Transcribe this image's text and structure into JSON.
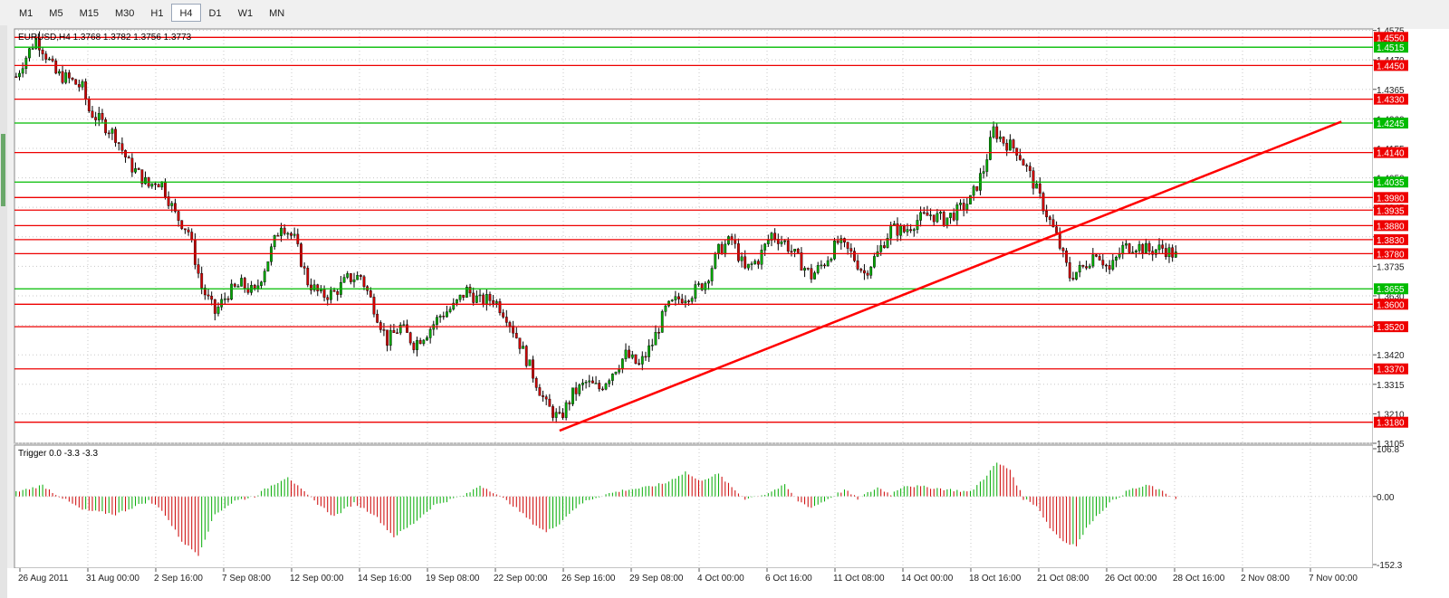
{
  "toolbar": {
    "timeframes": [
      {
        "label": "M1",
        "active": false
      },
      {
        "label": "M5",
        "active": false
      },
      {
        "label": "M15",
        "active": false
      },
      {
        "label": "M30",
        "active": false
      },
      {
        "label": "H1",
        "active": false
      },
      {
        "label": "H4",
        "active": true
      },
      {
        "label": "D1",
        "active": false
      },
      {
        "label": "W1",
        "active": false
      },
      {
        "label": "MN",
        "active": false
      }
    ]
  },
  "colors": {
    "bull": "#00aa00",
    "bear": "#cc0000",
    "support": "#00bb00",
    "resistance": "#ee0000",
    "trendline": "#ff0000",
    "grid": "#c8c8c8"
  },
  "chart_data": [
    {
      "type": "candlestick",
      "title": "EURUSD,H4  1.3768 1.3782 1.3756 1.3773",
      "symbol": "EURUSD",
      "timeframe": "H4",
      "ohlc_last": {
        "open": 1.3768,
        "high": 1.3782,
        "low": 1.3756,
        "close": 1.3773
      },
      "ylim": [
        1.3105,
        1.458
      ],
      "y_ticks": [
        "1.4575",
        "1.4470",
        "1.4365",
        "1.4260",
        "1.4155",
        "1.4050",
        "1.3945",
        "1.3840",
        "1.3735",
        "1.3630",
        "1.3525",
        "1.3420",
        "1.3315",
        "1.3210",
        "1.3105"
      ],
      "x_ticks": [
        "26 Aug 2011",
        "31 Aug 00:00",
        "2 Sep 16:00",
        "7 Sep 08:00",
        "12 Sep 00:00",
        "14 Sep 16:00",
        "19 Sep 08:00",
        "22 Sep 00:00",
        "26 Sep 16:00",
        "29 Sep 08:00",
        "4 Oct 00:00",
        "6 Oct 16:00",
        "11 Oct 08:00",
        "14 Oct 00:00",
        "18 Oct 16:00",
        "21 Oct 08:00",
        "26 Oct 00:00",
        "28 Oct 16:00",
        "2 Nov 08:00",
        "7 Nov 00:00"
      ],
      "price_anchors": [
        [
          0,
          1.441
        ],
        [
          2,
          1.446
        ],
        [
          6,
          1.4545
        ],
        [
          8,
          1.451
        ],
        [
          12,
          1.442
        ],
        [
          16,
          1.44
        ],
        [
          20,
          1.437
        ],
        [
          22,
          1.429
        ],
        [
          26,
          1.4245
        ],
        [
          30,
          1.42
        ],
        [
          34,
          1.41
        ],
        [
          38,
          1.405
        ],
        [
          40,
          1.402
        ],
        [
          42,
          1.404
        ],
        [
          44,
          1.403
        ],
        [
          48,
          1.392
        ],
        [
          52,
          1.386
        ],
        [
          56,
          1.366
        ],
        [
          60,
          1.357
        ],
        [
          64,
          1.364
        ],
        [
          68,
          1.367
        ],
        [
          72,
          1.364
        ],
        [
          76,
          1.376
        ],
        [
          80,
          1.389
        ],
        [
          84,
          1.383
        ],
        [
          88,
          1.368
        ],
        [
          92,
          1.363
        ],
        [
          96,
          1.364
        ],
        [
          100,
          1.369
        ],
        [
          104,
          1.37
        ],
        [
          108,
          1.359
        ],
        [
          112,
          1.347
        ],
        [
          116,
          1.352
        ],
        [
          120,
          1.346
        ],
        [
          124,
          1.35
        ],
        [
          128,
          1.356
        ],
        [
          132,
          1.359
        ],
        [
          136,
          1.365
        ],
        [
          140,
          1.361
        ],
        [
          144,
          1.362
        ],
        [
          148,
          1.356
        ],
        [
          152,
          1.346
        ],
        [
          156,
          1.335
        ],
        [
          160,
          1.324
        ],
        [
          164,
          1.319
        ],
        [
          168,
          1.328
        ],
        [
          172,
          1.332
        ],
        [
          176,
          1.33
        ],
        [
          180,
          1.336
        ],
        [
          184,
          1.342
        ],
        [
          188,
          1.338
        ],
        [
          192,
          1.346
        ],
        [
          196,
          1.358
        ],
        [
          200,
          1.362
        ],
        [
          204,
          1.364
        ],
        [
          208,
          1.368
        ],
        [
          212,
          1.379
        ],
        [
          216,
          1.383
        ],
        [
          220,
          1.372
        ],
        [
          224,
          1.376
        ],
        [
          228,
          1.385
        ],
        [
          232,
          1.382
        ],
        [
          236,
          1.376
        ],
        [
          240,
          1.37
        ],
        [
          244,
          1.375
        ],
        [
          248,
          1.382
        ],
        [
          252,
          1.378
        ],
        [
          256,
          1.371
        ],
        [
          260,
          1.378
        ],
        [
          264,
          1.387
        ],
        [
          268,
          1.386
        ],
        [
          272,
          1.39
        ],
        [
          276,
          1.392
        ],
        [
          280,
          1.39
        ],
        [
          284,
          1.393
        ],
        [
          288,
          1.397
        ],
        [
          292,
          1.408
        ],
        [
          295,
          1.422
        ],
        [
          298,
          1.418
        ],
        [
          302,
          1.415
        ],
        [
          306,
          1.406
        ],
        [
          310,
          1.395
        ],
        [
          314,
          1.384
        ],
        [
          318,
          1.37
        ],
        [
          322,
          1.373
        ],
        [
          326,
          1.379
        ],
        [
          330,
          1.372
        ],
        [
          334,
          1.38
        ],
        [
          338,
          1.381
        ],
        [
          342,
          1.379
        ],
        [
          346,
          1.38
        ],
        [
          350,
          1.3773
        ]
      ],
      "horizontal_levels": [
        {
          "label": "1.4550",
          "price": 1.455,
          "kind": "resistance"
        },
        {
          "label": "1.4515",
          "price": 1.4515,
          "kind": "support"
        },
        {
          "label": "1.4450",
          "price": 1.445,
          "kind": "resistance"
        },
        {
          "label": "1.4330",
          "price": 1.433,
          "kind": "resistance"
        },
        {
          "label": "1.4245",
          "price": 1.4245,
          "kind": "support"
        },
        {
          "label": "1.4140",
          "price": 1.414,
          "kind": "resistance"
        },
        {
          "label": "1.4035",
          "price": 1.4035,
          "kind": "support"
        },
        {
          "label": "1.3980",
          "price": 1.398,
          "kind": "resistance"
        },
        {
          "label": "1.3935",
          "price": 1.3935,
          "kind": "resistance"
        },
        {
          "label": "1.3880",
          "price": 1.388,
          "kind": "resistance"
        },
        {
          "label": "1.3830",
          "price": 1.383,
          "kind": "resistance"
        },
        {
          "label": "1.3780",
          "price": 1.378,
          "kind": "resistance"
        },
        {
          "label": "1.3655",
          "price": 1.3655,
          "kind": "support"
        },
        {
          "label": "1.3600",
          "price": 1.36,
          "kind": "resistance"
        },
        {
          "label": "1.3520",
          "price": 1.352,
          "kind": "resistance"
        },
        {
          "label": "1.3370",
          "price": 1.337,
          "kind": "resistance"
        },
        {
          "label": "1.3180",
          "price": 1.318,
          "kind": "resistance"
        }
      ],
      "trendline": {
        "from": {
          "bar": 164,
          "price": 1.315
        },
        "to": {
          "bar": 400,
          "price": 1.425
        }
      },
      "total_bars": 410,
      "visible_bars": 351
    },
    {
      "type": "histogram",
      "title": "Trigger 0.0 -3.3 -3.3",
      "ylim": [
        -152.3,
        106.8
      ],
      "y_ticks": [
        "106.8",
        "0.00",
        "-152.3"
      ],
      "anchors": [
        [
          0,
          10
        ],
        [
          8,
          25
        ],
        [
          12,
          5
        ],
        [
          20,
          -30
        ],
        [
          30,
          -40
        ],
        [
          40,
          -10
        ],
        [
          44,
          -30
        ],
        [
          50,
          -100
        ],
        [
          55,
          -130
        ],
        [
          60,
          -40
        ],
        [
          66,
          -10
        ],
        [
          72,
          0
        ],
        [
          76,
          20
        ],
        [
          82,
          45
        ],
        [
          86,
          15
        ],
        [
          90,
          -10
        ],
        [
          96,
          -45
        ],
        [
          102,
          -15
        ],
        [
          108,
          -40
        ],
        [
          114,
          -90
        ],
        [
          120,
          -60
        ],
        [
          126,
          -20
        ],
        [
          130,
          -10
        ],
        [
          136,
          5
        ],
        [
          140,
          25
        ],
        [
          144,
          10
        ],
        [
          150,
          -20
        ],
        [
          156,
          -60
        ],
        [
          160,
          -80
        ],
        [
          164,
          -60
        ],
        [
          168,
          -30
        ],
        [
          172,
          -10
        ],
        [
          178,
          5
        ],
        [
          184,
          15
        ],
        [
          190,
          20
        ],
        [
          196,
          30
        ],
        [
          202,
          55
        ],
        [
          206,
          35
        ],
        [
          212,
          50
        ],
        [
          216,
          20
        ],
        [
          220,
          -5
        ],
        [
          226,
          5
        ],
        [
          232,
          25
        ],
        [
          236,
          -10
        ],
        [
          240,
          -25
        ],
        [
          244,
          -10
        ],
        [
          250,
          15
        ],
        [
          254,
          -5
        ],
        [
          260,
          20
        ],
        [
          264,
          5
        ],
        [
          268,
          25
        ],
        [
          276,
          20
        ],
        [
          282,
          15
        ],
        [
          288,
          10
        ],
        [
          292,
          40
        ],
        [
          296,
          75
        ],
        [
          300,
          60
        ],
        [
          304,
          -5
        ],
        [
          308,
          -20
        ],
        [
          312,
          -70
        ],
        [
          316,
          -100
        ],
        [
          320,
          -110
        ],
        [
          324,
          -60
        ],
        [
          330,
          -15
        ],
        [
          336,
          15
        ],
        [
          342,
          25
        ],
        [
          346,
          10
        ],
        [
          350,
          -3
        ]
      ]
    }
  ]
}
